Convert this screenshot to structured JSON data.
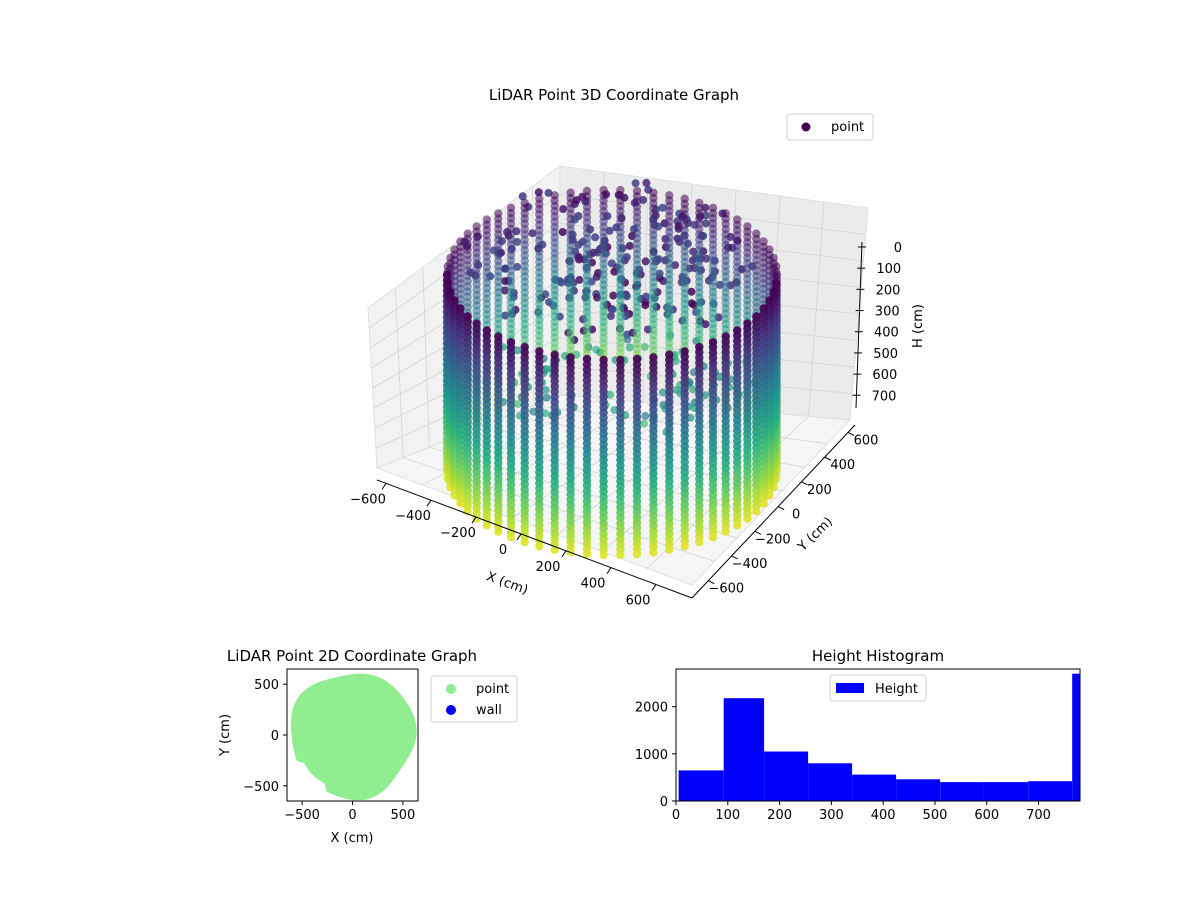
{
  "chart_data": [
    {
      "type": "scatter",
      "projection": "3d",
      "title": "LiDAR Point 3D Coordinate Graph",
      "xlabel": "X (cm)",
      "ylabel": "Y (cm)",
      "zlabel": "H (cm)",
      "x_ticks": [
        "−600",
        "−400",
        "−200",
        "0",
        "200",
        "400",
        "600"
      ],
      "y_ticks": [
        "600",
        "400",
        "200",
        "0",
        "−200",
        "−400",
        "−600"
      ],
      "z_ticks": [
        "0",
        "100",
        "200",
        "300",
        "400",
        "500",
        "600",
        "700"
      ],
      "z_inverted": true,
      "colormap": "viridis",
      "series": [
        {
          "name": "point",
          "color": "#440154",
          "shape": "cylindrical wall of vertical scan columns, radius ~600 cm, height 0–780 cm"
        }
      ],
      "legend_placement": "upper-right",
      "grid": true
    },
    {
      "type": "scatter",
      "title": "LiDAR Point 2D Coordinate Graph",
      "xlabel": "X (cm)",
      "ylabel": "Y (cm)",
      "xlim": [
        -650,
        650
      ],
      "ylim": [
        -650,
        650
      ],
      "x_ticks": [
        "−500",
        "0",
        "500"
      ],
      "y_ticks": [
        "500",
        "0",
        "−500"
      ],
      "series": [
        {
          "name": "point",
          "color": "#90ee90",
          "shape": "filled disc radius ~620 cm"
        },
        {
          "name": "wall",
          "color": "#0000ff",
          "values": []
        }
      ],
      "legend_placement": "outside-right",
      "grid": false
    },
    {
      "type": "bar",
      "subtype": "histogram",
      "title": "Height Histogram",
      "xlabel": "",
      "ylabel": "",
      "xlim": [
        0,
        780
      ],
      "ylim": [
        0,
        2800
      ],
      "x_ticks": [
        "0",
        "100",
        "200",
        "300",
        "400",
        "500",
        "600",
        "700"
      ],
      "y_ticks": [
        "0",
        "1000",
        "2000"
      ],
      "bin_edges": [
        5,
        92,
        170,
        255,
        340,
        425,
        510,
        593,
        680,
        765,
        780
      ],
      "values": [
        650,
        2180,
        1050,
        800,
        560,
        460,
        400,
        400,
        420,
        2700
      ],
      "series": [
        {
          "name": "Height",
          "color": "#0000ff"
        }
      ],
      "legend_placement": "upper-center",
      "grid": false
    }
  ]
}
